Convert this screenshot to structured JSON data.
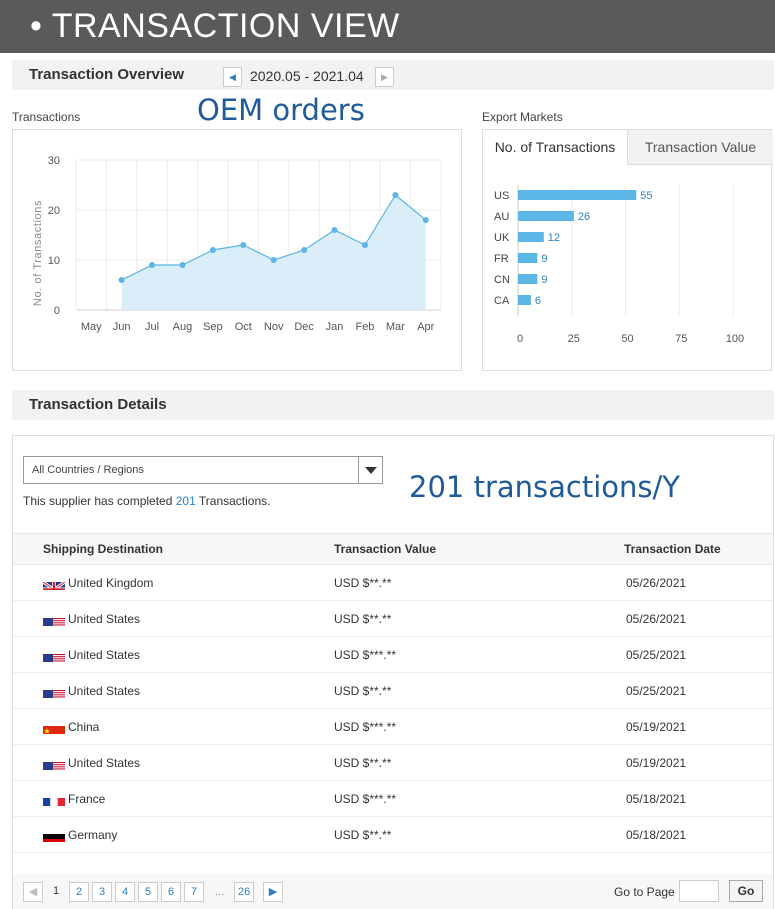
{
  "banner": {
    "title": "• TRANSACTION VIEW"
  },
  "overview": {
    "title": "Transaction Overview",
    "period": "2020.05 - 2021.04",
    "transactions_label": "Transactions",
    "annotation": "OEM orders",
    "export_markets_label": "Export Markets"
  },
  "tabs": {
    "count_tab": "No. of Transactions",
    "value_tab": "Transaction Value"
  },
  "chart_data": [
    {
      "type": "area",
      "title": "",
      "xlabel": "",
      "ylabel": "No. of Transactions",
      "categories": [
        "May",
        "Jun",
        "Jul",
        "Aug",
        "Sep",
        "Oct",
        "Nov",
        "Dec",
        "Jan",
        "Feb",
        "Mar",
        "Apr"
      ],
      "values": [
        null,
        6,
        9,
        9,
        12,
        13,
        10,
        12,
        16,
        13,
        23,
        18
      ],
      "ylim": [
        0,
        30
      ],
      "yticks": [
        0,
        10,
        20,
        30
      ],
      "grid": true,
      "color": "#5bb5e5",
      "fill": "#d9eef9"
    },
    {
      "type": "bar",
      "orientation": "horizontal",
      "title": "",
      "categories": [
        "US",
        "AU",
        "UK",
        "FR",
        "CN",
        "CA"
      ],
      "values": [
        55,
        26,
        12,
        9,
        9,
        6
      ],
      "xlim": [
        0,
        100
      ],
      "xticks": [
        0,
        25,
        50,
        75,
        100
      ],
      "grid": true,
      "color": "#5bb5e5"
    }
  ],
  "details": {
    "title": "Transaction Details",
    "filter_value": "All Countries / Regions",
    "supplier_prefix": "This supplier has completed ",
    "supplier_count": "201",
    "supplier_suffix": " Transactions.",
    "annotation": "201 transactions/Y",
    "columns": {
      "destination": "Shipping Destination",
      "value": "Transaction Value",
      "date": "Transaction Date"
    },
    "rows": [
      {
        "country": "United Kingdom",
        "flag": "uk-flag-icon",
        "value": "USD $**.**",
        "date": "05/26/2021"
      },
      {
        "country": "United States",
        "flag": "us-flag-icon",
        "value": "USD $**.**",
        "date": "05/26/2021"
      },
      {
        "country": "United States",
        "flag": "us-flag-icon",
        "value": "USD $***.**",
        "date": "05/25/2021"
      },
      {
        "country": "United States",
        "flag": "us-flag-icon",
        "value": "USD $**.**",
        "date": "05/25/2021"
      },
      {
        "country": "China",
        "flag": "cn-flag-icon",
        "value": "USD $***.**",
        "date": "05/19/2021"
      },
      {
        "country": "United States",
        "flag": "us-flag-icon",
        "value": "USD $**.**",
        "date": "05/19/2021"
      },
      {
        "country": "France",
        "flag": "fr-flag-icon",
        "value": "USD $***.**",
        "date": "05/18/2021"
      },
      {
        "country": "Germany",
        "flag": "de-flag-icon",
        "value": "USD $**.**",
        "date": "05/18/2021"
      }
    ]
  },
  "pagination": {
    "pages": [
      "1",
      "2",
      "3",
      "4",
      "5",
      "6",
      "7"
    ],
    "ellipsis": "...",
    "last": "26",
    "current": "1",
    "goto_label": "Go to Page",
    "go_button": "Go"
  }
}
